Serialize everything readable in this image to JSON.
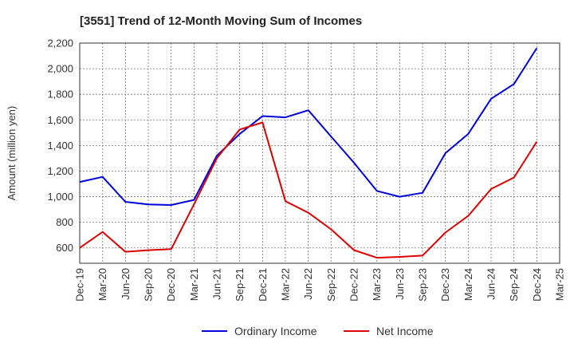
{
  "chart_data": {
    "type": "line",
    "title": "[3551]  Trend of 12-Month Moving Sum of Incomes",
    "ylabel": "Amount (million yen)",
    "xlabel": "",
    "ylim": [
      480,
      2200
    ],
    "yticks": [
      600,
      800,
      1000,
      1200,
      1400,
      1600,
      1800,
      2000,
      2200
    ],
    "ytick_labels": [
      "600",
      "800",
      "1,000",
      "1,200",
      "1,400",
      "1,600",
      "1,800",
      "2,000",
      "2,200"
    ],
    "categories": [
      "Dec-19",
      "Mar-20",
      "Jun-20",
      "Sep-20",
      "Dec-20",
      "Mar-21",
      "Jun-21",
      "Sep-21",
      "Dec-21",
      "Mar-22",
      "Jun-22",
      "Sep-22",
      "Dec-22",
      "Mar-23",
      "Jun-23",
      "Sep-23",
      "Dec-23",
      "Mar-24",
      "Jun-24",
      "Sep-24",
      "Dec-24",
      "Mar-25"
    ],
    "grid": true,
    "legend_position": "bottom-center",
    "series": [
      {
        "name": "Ordinary Income",
        "color": "#0000dd",
        "values": [
          1115,
          1155,
          960,
          940,
          935,
          975,
          1320,
          1490,
          1630,
          1620,
          1675,
          1470,
          1265,
          1045,
          1000,
          1030,
          1340,
          1490,
          1765,
          1880,
          2160,
          null
        ]
      },
      {
        "name": "Net Income",
        "color": "#dd0000",
        "values": [
          600,
          725,
          570,
          582,
          590,
          940,
          1300,
          1525,
          1580,
          965,
          875,
          745,
          583,
          523,
          530,
          540,
          720,
          850,
          1060,
          1150,
          1430,
          null
        ]
      }
    ]
  }
}
